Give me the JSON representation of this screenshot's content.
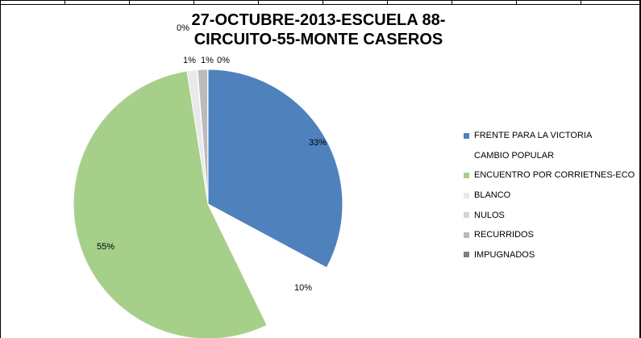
{
  "chart_data": {
    "type": "pie",
    "title_lines": [
      "27-OCTUBRE-2013-ESCUELA 88-",
      "CIRCUITO-55-MONTE CASEROS"
    ],
    "slices": [
      {
        "name": "FRENTE PARA LA VICTORIA",
        "value": 33,
        "label": "33%",
        "color": "#4f81bd"
      },
      {
        "name": "CAMBIO POPULAR",
        "value": 10,
        "label": "10%",
        "color": "#ffffff"
      },
      {
        "name": "ENCUENTRO POR CORRIETNES-ECO",
        "value": 55,
        "label": "55%",
        "color": "#a6d08a"
      },
      {
        "name": "BLANCO",
        "value": 1.2,
        "label": "1%",
        "color": "#e9e9e9"
      },
      {
        "name": "NULOS",
        "value": 0.05,
        "label": "0%",
        "color": "#d5d5d5"
      },
      {
        "name": "RECURRIDOS",
        "value": 1.2,
        "label": "1%",
        "color": "#bbbbbb"
      },
      {
        "name": "IMPUGNADOS",
        "value": 0.05,
        "label": "0%",
        "color": "#7f7f7f"
      }
    ],
    "legend_position": "right"
  }
}
